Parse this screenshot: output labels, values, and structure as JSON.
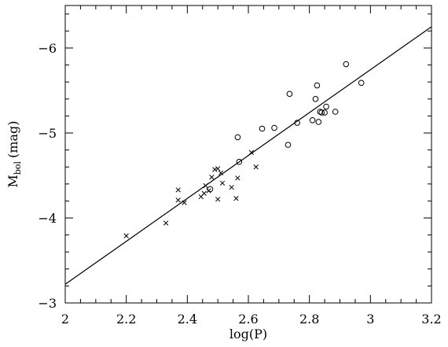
{
  "chart_data": {
    "type": "scatter",
    "xlabel": "log(P)",
    "ylabel_main": "M",
    "ylabel_sub": "bol",
    "ylabel_unit": "(mag)",
    "xlim": [
      2.0,
      3.2
    ],
    "ylim": [
      -3,
      -6.5
    ],
    "y_inverted": true,
    "grid": false,
    "x_ticks": [
      2.0,
      2.2,
      2.4,
      2.6,
      2.8,
      3.0,
      3.2
    ],
    "x_tick_labels": [
      "2",
      "2.2",
      "2.4",
      "2.6",
      "2.8",
      "3",
      "3.2"
    ],
    "y_ticks": [
      -3,
      -4,
      -5,
      -6
    ],
    "y_tick_labels": [
      "−3",
      "−4",
      "−5",
      "−6"
    ],
    "fit_line": {
      "x": [
        2.0,
        3.2
      ],
      "y": [
        -3.22,
        -6.25
      ]
    },
    "series": [
      {
        "marker": "cross",
        "x": [
          2.2,
          2.33,
          2.37,
          2.37,
          2.39,
          2.445,
          2.455,
          2.46,
          2.47,
          2.48,
          2.49,
          2.5,
          2.5,
          2.51,
          2.515,
          2.545,
          2.56,
          2.565,
          2.61,
          2.625
        ],
        "y": [
          -3.79,
          -3.94,
          -4.33,
          -4.21,
          -4.18,
          -4.25,
          -4.29,
          -4.38,
          -4.32,
          -4.48,
          -4.57,
          -4.22,
          -4.58,
          -4.53,
          -4.41,
          -4.36,
          -4.23,
          -4.47,
          -4.77,
          -4.6
        ]
      },
      {
        "marker": "circle",
        "x": [
          2.475,
          2.565,
          2.57,
          2.645,
          2.685,
          2.73,
          2.735,
          2.76,
          2.81,
          2.82,
          2.825,
          2.83,
          2.835,
          2.84,
          2.85,
          2.855,
          2.885,
          2.92,
          2.97
        ],
        "y": [
          -4.34,
          -4.95,
          -4.66,
          -5.05,
          -5.06,
          -4.86,
          -5.46,
          -5.12,
          -5.15,
          -5.4,
          -5.56,
          -5.13,
          -5.25,
          -5.24,
          -5.24,
          -5.31,
          -5.25,
          -5.81,
          -5.59
        ]
      }
    ]
  }
}
